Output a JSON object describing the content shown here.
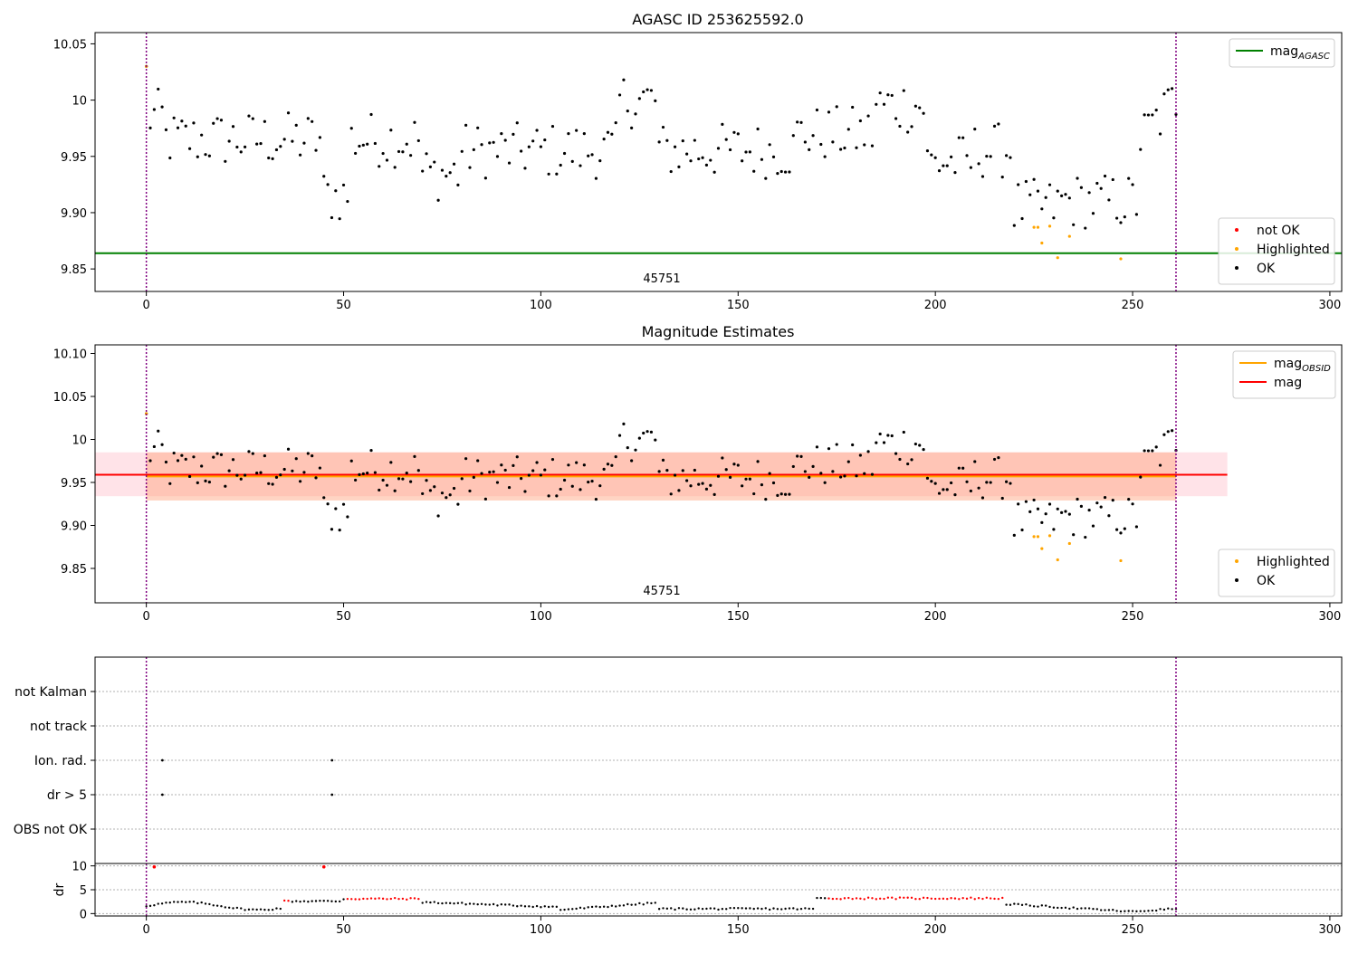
{
  "colors": {
    "ok": "#000000",
    "highlighted": "#ffa500",
    "not_ok": "#ff0000",
    "agasc_line": "#008000",
    "obsid_line": "#ffa500",
    "mag_line": "#ff0000",
    "obsid_band": "#ffa07a",
    "mag_band": "#ffc0cb",
    "obs_boundary": "#800080"
  },
  "chart_data": [
    {
      "id": "top",
      "type": "scatter",
      "title": "AGASC ID 253625592.0",
      "xlim": [
        -13,
        303
      ],
      "ylim": [
        9.83,
        10.06
      ],
      "xticks": [
        0,
        50,
        100,
        150,
        200,
        250,
        300
      ],
      "yticks": [
        9.85,
        9.9,
        9.95,
        10.0,
        10.05
      ],
      "annotation": "45751",
      "obs_boundaries": [
        0,
        261
      ],
      "hlines": [
        {
          "key": "agasc",
          "y": 9.864,
          "x_range": [
            -13,
            303
          ]
        }
      ],
      "legend_upper": [
        {
          "label": "mag",
          "sub": "AGASC",
          "kind": "line",
          "color_key": "agasc_line"
        }
      ],
      "legend_lower": [
        {
          "label": "not OK",
          "kind": "dot",
          "color_key": "not_ok"
        },
        {
          "label": "Highlighted",
          "kind": "dot",
          "color_key": "highlighted"
        },
        {
          "label": "OK",
          "kind": "dot",
          "color_key": "ok"
        }
      ]
    },
    {
      "id": "mid",
      "type": "scatter",
      "title": "Magnitude Estimates",
      "xlim": [
        -13,
        303
      ],
      "ylim": [
        9.81,
        10.11
      ],
      "xticks": [
        0,
        50,
        100,
        150,
        200,
        250,
        300
      ],
      "yticks": [
        9.85,
        9.9,
        9.95,
        10.0,
        10.05,
        10.1
      ],
      "annotation": "45751",
      "obs_boundaries": [
        0,
        261
      ],
      "bands": [
        {
          "y": [
            9.934,
            9.985
          ],
          "x": [
            -13,
            274
          ],
          "color_key": "mag_band"
        },
        {
          "y": [
            9.929,
            9.985
          ],
          "x": [
            0,
            261
          ],
          "color_key": "obsid_band"
        }
      ],
      "hlines": [
        {
          "key": "mag",
          "y": 9.959,
          "x_range": [
            -13,
            274
          ],
          "color_key": "mag_line"
        },
        {
          "key": "obsid",
          "y": 9.957,
          "x_range": [
            0,
            261
          ],
          "color_key": "obsid_line"
        }
      ],
      "legend_upper": [
        {
          "label": "mag",
          "sub": "OBSID",
          "kind": "line",
          "color_key": "obsid_line"
        },
        {
          "label": "mag",
          "sub": "",
          "kind": "line",
          "color_key": "mag_line"
        }
      ],
      "legend_lower": [
        {
          "label": "Highlighted",
          "kind": "dot",
          "color_key": "highlighted"
        },
        {
          "label": "OK",
          "kind": "dot",
          "color_key": "ok"
        }
      ]
    },
    {
      "id": "flags",
      "type": "scatter",
      "xlim": [
        -13,
        303
      ],
      "categories": [
        "OBS not OK",
        "dr > 5",
        "Ion. rad.",
        "not track",
        "not Kalman"
      ],
      "grid": true,
      "obs_boundaries": [
        0,
        261
      ],
      "points": [
        {
          "x": 2,
          "category": "Ion. rad."
        },
        {
          "x": 45,
          "category": "Ion. rad."
        },
        {
          "x": 2,
          "category": "dr > 5"
        },
        {
          "x": 45,
          "category": "dr > 5"
        }
      ]
    },
    {
      "id": "dr",
      "type": "scatter",
      "ylabel": "dr",
      "xlim": [
        -13,
        303
      ],
      "ylim": [
        -0.5,
        10.5
      ],
      "xticks": [
        0,
        50,
        100,
        150,
        200,
        250,
        300
      ],
      "yticks": [
        0,
        5,
        10
      ],
      "obs_boundaries": [
        0,
        261
      ],
      "red_points": [
        [
          2,
          9.8
        ],
        [
          45,
          9.8
        ]
      ]
    }
  ]
}
